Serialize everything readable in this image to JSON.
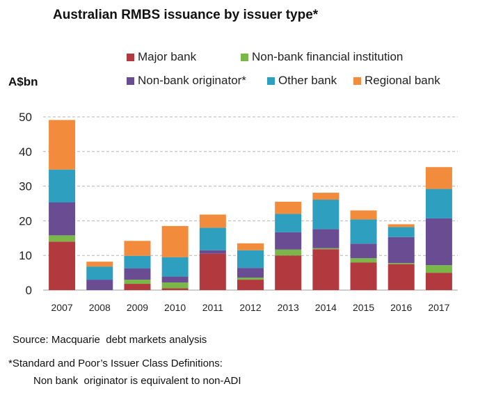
{
  "chart_data": {
    "type": "bar",
    "stacked": true,
    "title": "Australian RMBS issuance by issuer type*",
    "ylabel": "A$bn",
    "xlabel": "",
    "ylim": [
      0,
      50
    ],
    "yticks": [
      0,
      10,
      20,
      30,
      40,
      50
    ],
    "grid": true,
    "legend_position": "top",
    "categories": [
      "2007",
      "2008",
      "2009",
      "2010",
      "2011",
      "2012",
      "2013",
      "2014",
      "2015",
      "2016",
      "2017"
    ],
    "series": [
      {
        "name": "Major bank",
        "color": "#b23a3e",
        "values": [
          14.0,
          0.0,
          1.8,
          0.5,
          10.5,
          3.0,
          10.0,
          11.8,
          8.0,
          7.5,
          5.0
        ]
      },
      {
        "name": "Non-bank financial institution",
        "color": "#7ab648",
        "values": [
          1.8,
          0.0,
          1.2,
          1.7,
          0.0,
          0.6,
          1.7,
          0.3,
          1.2,
          0.3,
          2.2
        ]
      },
      {
        "name": "Non-bank originator*",
        "color": "#6a4c93",
        "values": [
          9.5,
          3.0,
          3.3,
          1.7,
          1.0,
          2.8,
          5.0,
          5.5,
          4.2,
          7.5,
          13.5
        ]
      },
      {
        "name": "Other bank",
        "color": "#2f9fc0",
        "values": [
          9.5,
          3.8,
          3.6,
          5.6,
          6.5,
          5.1,
          5.3,
          8.5,
          7.0,
          2.9,
          8.5
        ]
      },
      {
        "name": "Regional bank",
        "color": "#f28b3c",
        "values": [
          14.3,
          1.4,
          4.3,
          9.0,
          3.8,
          2.0,
          3.5,
          2.0,
          2.6,
          0.8,
          6.3
        ]
      }
    ]
  },
  "notes": {
    "source": "Source: Macquarie  debt markets analysis",
    "footnote_line1": "*Standard and Poor’s Issuer Class Definitions:",
    "footnote_line2": "Non bank  originator is equivalent to non-ADI"
  }
}
